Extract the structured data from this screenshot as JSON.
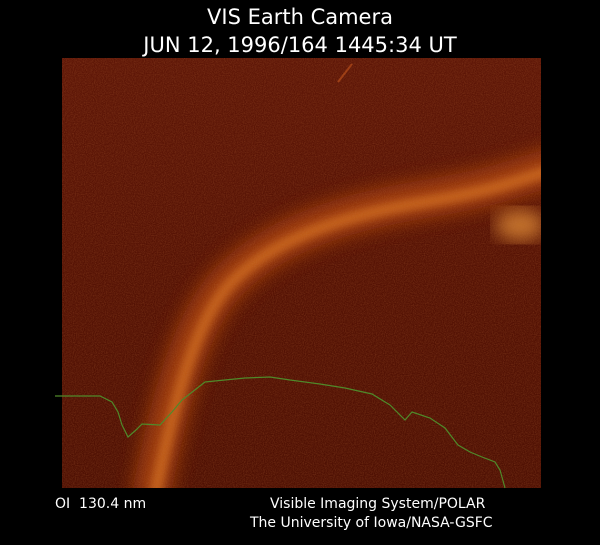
{
  "header": {
    "title": "VIS Earth Camera",
    "timestamp": "JUN 12, 1996/164 1445:34 UT"
  },
  "footer": {
    "wavelength": "OI  130.4 nm",
    "credit_line1": "Visible Imaging System/POLAR",
    "credit_line2": "The University of Iowa/NASA-GSFC"
  }
}
